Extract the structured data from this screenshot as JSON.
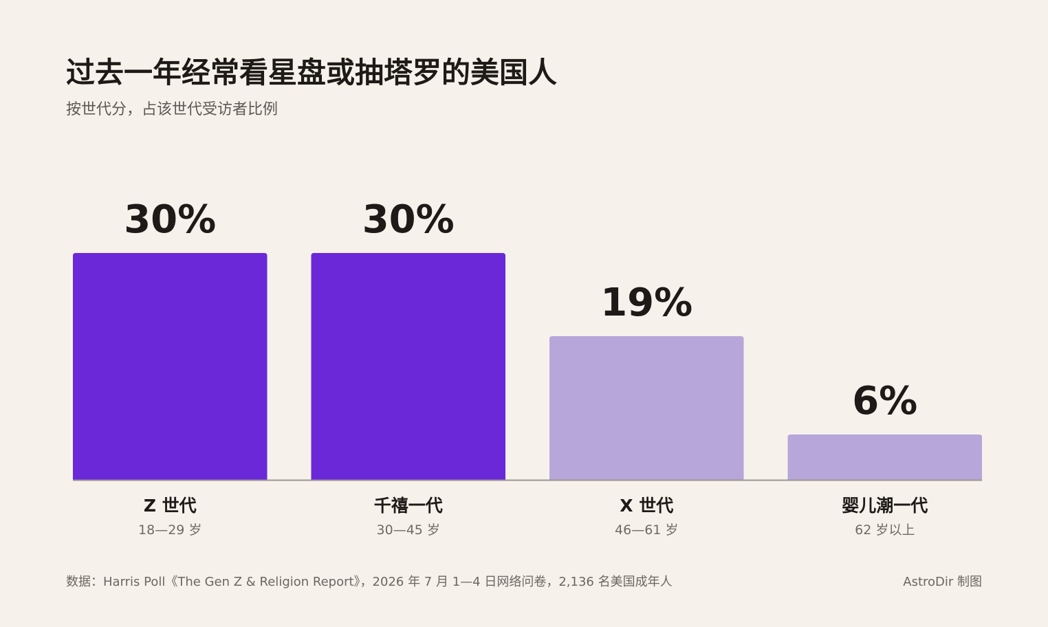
{
  "header": {
    "title": "过去一年经常看星盘或抽塔罗的美国人",
    "subtitle": "按世代分，占该世代受访者比例"
  },
  "chart_data": {
    "type": "bar",
    "categories": [
      "Z 世代",
      "千禧一代",
      "X 世代",
      "婴儿潮一代"
    ],
    "age_ranges": [
      "18—29 岁",
      "30—45 岁",
      "46—61 岁",
      "62 岁以上"
    ],
    "values": [
      30,
      30,
      19,
      6
    ],
    "value_labels": [
      "30%",
      "30%",
      "19%",
      "6%"
    ],
    "ylim": [
      0,
      30
    ],
    "grid": false,
    "legend": "none",
    "colors": {
      "highlight": "#6b28d9",
      "muted": "#b7a6d9",
      "baseline": "#9a9590"
    },
    "highlighted": [
      true,
      true,
      false,
      false
    ]
  },
  "footer": {
    "source": "数据：Harris Poll《The Gen Z & Religion Report》，2026 年 7 月 1—4 日网络问卷，2,136 名美国成年人",
    "credit": "AstroDir 制图"
  }
}
